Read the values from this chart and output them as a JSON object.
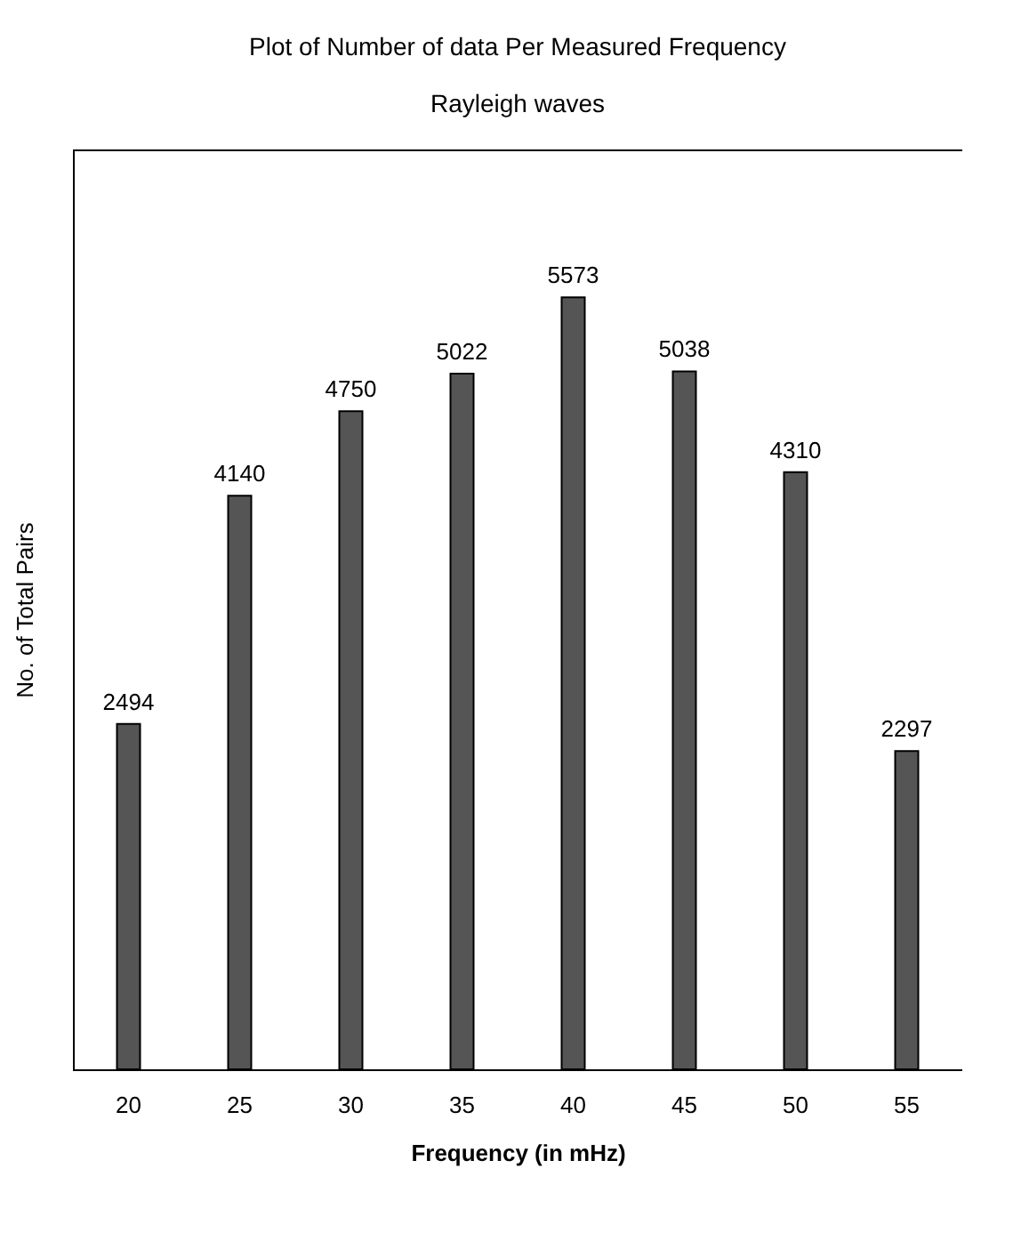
{
  "chart_data": {
    "type": "bar",
    "title": "Plot of Number of data Per Measured Frequency",
    "subtitle": "Rayleigh waves",
    "xlabel": "Frequency (in mHz)",
    "ylabel": "No. of Total Pairs",
    "categories": [
      "20",
      "25",
      "30",
      "35",
      "40",
      "45",
      "50",
      "55"
    ],
    "values": [
      2494,
      4140,
      4750,
      5022,
      5573,
      5038,
      4310,
      2297
    ],
    "color": "#555555",
    "ylim": [
      0,
      6640
    ],
    "tick_labels": "x",
    "data_labels": true
  }
}
